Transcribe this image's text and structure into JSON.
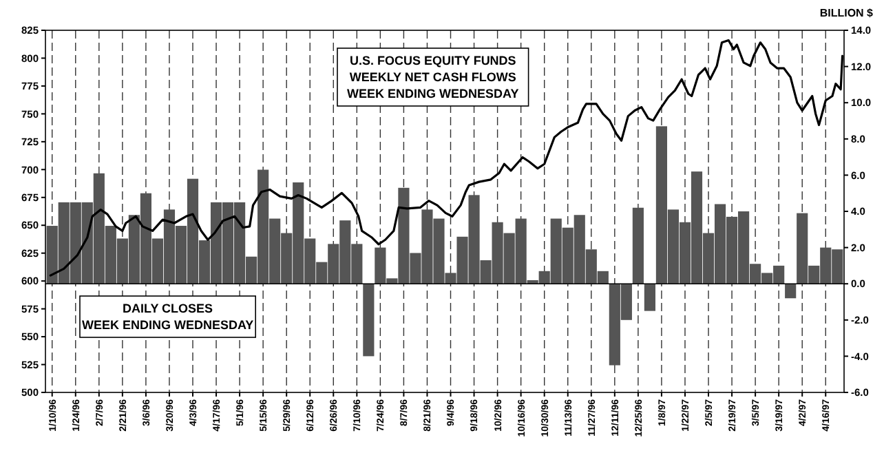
{
  "chart_data": {
    "type": "bar",
    "y2label": "BILLION $",
    "xlim": [
      "1996-01-06",
      "1997-04-27"
    ],
    "xticks": [
      {
        "value": "1996-01-10",
        "label": "1/10/96"
      },
      {
        "value": "1996-01-24",
        "label": "1/24/96"
      },
      {
        "value": "1996-02-07",
        "label": "2/7/96"
      },
      {
        "value": "1996-02-21",
        "label": "2/21/96"
      },
      {
        "value": "1996-03-06",
        "label": "3/6/96"
      },
      {
        "value": "1996-03-20",
        "label": "3/20/96"
      },
      {
        "value": "1996-04-03",
        "label": "4/3/96"
      },
      {
        "value": "1996-04-17",
        "label": "4/17/96"
      },
      {
        "value": "1996-05-01",
        "label": "5/1/96"
      },
      {
        "value": "1996-05-15",
        "label": "5/15/96"
      },
      {
        "value": "1996-05-29",
        "label": "5/29/96"
      },
      {
        "value": "1996-06-12",
        "label": "6/12/96"
      },
      {
        "value": "1996-06-26",
        "label": "6/26/96"
      },
      {
        "value": "1996-07-10",
        "label": "7/10/96"
      },
      {
        "value": "1996-07-24",
        "label": "7/24/96"
      },
      {
        "value": "1996-08-07",
        "label": "8/7/96"
      },
      {
        "value": "1996-08-21",
        "label": "8/21/96"
      },
      {
        "value": "1996-09-04",
        "label": "9/4/96"
      },
      {
        "value": "1996-09-18",
        "label": "9/18/96"
      },
      {
        "value": "1996-10-02",
        "label": "10/2/96"
      },
      {
        "value": "1996-10-16",
        "label": "10/16/96"
      },
      {
        "value": "1996-10-30",
        "label": "10/30/96"
      },
      {
        "value": "1996-11-13",
        "label": "11/13/96"
      },
      {
        "value": "1996-11-27",
        "label": "11/27/96"
      },
      {
        "value": "1996-12-11",
        "label": "12/11/96"
      },
      {
        "value": "1996-12-25",
        "label": "12/25/96"
      },
      {
        "value": "1997-01-08",
        "label": "1/8/97"
      },
      {
        "value": "1997-01-22",
        "label": "1/22/97"
      },
      {
        "value": "1997-02-05",
        "label": "2/5/97"
      },
      {
        "value": "1997-02-19",
        "label": "2/19/97"
      },
      {
        "value": "1997-03-05",
        "label": "3/5/97"
      },
      {
        "value": "1997-03-19",
        "label": "3/19/97"
      },
      {
        "value": "1997-04-02",
        "label": "4/2/97"
      },
      {
        "value": "1997-04-16",
        "label": "4/16/97"
      }
    ],
    "ylim": [
      500,
      825
    ],
    "yticks": [
      500,
      525,
      550,
      575,
      600,
      625,
      650,
      675,
      700,
      725,
      750,
      775,
      800,
      825
    ],
    "y2lim": [
      -6,
      14
    ],
    "y2ticks": [
      {
        "value": -6,
        "label": "-6.0"
      },
      {
        "value": -4,
        "label": "-4.0"
      },
      {
        "value": -2,
        "label": "-2.0"
      },
      {
        "value": 0,
        "label": "0.0"
      },
      {
        "value": 2,
        "label": "2.0"
      },
      {
        "value": 4,
        "label": "4.0"
      },
      {
        "value": 6,
        "label": "6.0"
      },
      {
        "value": 8,
        "label": "8.0"
      },
      {
        "value": 10,
        "label": "10.0"
      },
      {
        "value": 12,
        "label": "12.0"
      },
      {
        "value": 14,
        "label": "14.0"
      }
    ],
    "grid": "x",
    "annotations": [
      "U.S. FOCUS EQUITY FUNDS\nWEEKLY NET CASH FLOWS\nWEEK ENDING WEDNESDAY",
      "DAILY CLOSES\nWEEK ENDING WEDNESDAY"
    ],
    "series": [
      {
        "axis": "y2",
        "color": "#555555",
        "x": [
          "1996-01-10",
          "1996-01-17",
          "1996-01-24",
          "1996-01-31",
          "1996-02-07",
          "1996-02-14",
          "1996-02-21",
          "1996-02-28",
          "1996-03-06",
          "1996-03-13",
          "1996-03-20",
          "1996-03-27",
          "1996-04-03",
          "1996-04-10",
          "1996-04-17",
          "1996-04-24",
          "1996-05-01",
          "1996-05-08",
          "1996-05-15",
          "1996-05-22",
          "1996-05-29",
          "1996-06-05",
          "1996-06-12",
          "1996-06-19",
          "1996-06-26",
          "1996-07-03",
          "1996-07-10",
          "1996-07-17",
          "1996-07-24",
          "1996-07-31",
          "1996-08-07",
          "1996-08-14",
          "1996-08-21",
          "1996-08-28",
          "1996-09-04",
          "1996-09-11",
          "1996-09-18",
          "1996-09-25",
          "1996-10-02",
          "1996-10-09",
          "1996-10-16",
          "1996-10-23",
          "1996-10-30",
          "1996-11-06",
          "1996-11-13",
          "1996-11-20",
          "1996-11-27",
          "1996-12-04",
          "1996-12-11",
          "1996-12-18",
          "1996-12-25",
          "1997-01-01",
          "1997-01-08",
          "1997-01-15",
          "1997-01-22",
          "1997-01-29",
          "1997-02-05",
          "1997-02-12",
          "1997-02-19",
          "1997-02-26",
          "1997-03-05",
          "1997-03-12",
          "1997-03-19",
          "1997-03-26",
          "1997-04-02",
          "1997-04-09",
          "1997-04-16",
          "1997-04-23"
        ],
        "values": [
          3.2,
          4.5,
          4.5,
          4.5,
          6.1,
          3.2,
          2.5,
          3.8,
          5.0,
          2.5,
          4.1,
          3.2,
          5.8,
          2.4,
          4.5,
          4.5,
          4.5,
          1.5,
          6.3,
          3.6,
          2.8,
          5.6,
          2.5,
          1.2,
          2.2,
          3.5,
          2.2,
          -4.0,
          2.0,
          0.3,
          5.3,
          1.7,
          4.1,
          3.6,
          0.6,
          2.6,
          4.9,
          1.3,
          3.4,
          2.8,
          3.6,
          0.2,
          0.7,
          3.6,
          3.1,
          3.8,
          1.9,
          0.7,
          -4.5,
          -2.0,
          4.2,
          -1.5,
          8.7,
          4.1,
          3.4,
          6.2,
          2.8,
          4.4,
          3.7,
          4.0,
          1.1,
          0.6,
          1.0,
          -0.8,
          3.9,
          1.0,
          2.0,
          1.9
        ]
      },
      {
        "type": "line",
        "color": "#000000",
        "x": [
          "1996-01-09",
          "1996-01-17",
          "1996-01-25",
          "1996-01-31",
          "1996-02-03",
          "1996-02-08",
          "1996-02-12",
          "1996-02-17",
          "1996-02-21",
          "1996-02-23",
          "1996-02-29",
          "1996-03-04",
          "1996-03-10",
          "1996-03-16",
          "1996-03-23",
          "1996-03-30",
          "1996-04-03",
          "1996-04-08",
          "1996-04-12",
          "1996-04-16",
          "1996-04-21",
          "1996-04-28",
          "1996-05-03",
          "1996-05-07",
          "1996-05-09",
          "1996-05-14",
          "1996-05-19",
          "1996-05-25",
          "1996-06-01",
          "1996-06-05",
          "1996-06-10",
          "1996-06-19",
          "1996-06-25",
          "1996-07-01",
          "1996-07-07",
          "1996-07-11",
          "1996-07-13",
          "1996-07-19",
          "1996-07-23",
          "1996-07-27",
          "1996-08-01",
          "1996-08-04",
          "1996-08-09",
          "1996-08-17",
          "1996-08-22",
          "1996-08-27",
          "1996-09-01",
          "1996-09-05",
          "1996-09-10",
          "1996-09-13",
          "1996-09-15",
          "1996-09-21",
          "1996-09-28",
          "1996-10-03",
          "1996-10-06",
          "1996-10-10",
          "1996-10-17",
          "1996-10-21",
          "1996-10-26",
          "1996-10-30",
          "1996-11-05",
          "1996-11-09",
          "1996-11-13",
          "1996-11-19",
          "1996-11-22",
          "1996-11-24",
          "1996-11-30",
          "1996-12-04",
          "1996-12-08",
          "1996-12-12",
          "1996-12-15",
          "1996-12-19",
          "1996-12-23",
          "1996-12-27",
          "1996-12-31",
          "1997-01-03",
          "1997-01-07",
          "1997-01-12",
          "1997-01-16",
          "1997-01-20",
          "1997-01-24",
          "1997-01-26",
          "1997-01-30",
          "1997-02-03",
          "1997-02-06",
          "1997-02-10",
          "1997-02-13",
          "1997-02-17",
          "1997-02-20",
          "1997-02-22",
          "1997-02-26",
          "1997-03-02",
          "1997-03-04",
          "1997-03-08",
          "1997-03-11",
          "1997-03-14",
          "1997-03-18",
          "1997-03-22",
          "1997-03-26",
          "1997-03-30",
          "1997-04-02",
          "1997-04-08",
          "1997-04-10",
          "1997-04-12",
          "1997-04-16",
          "1997-04-20",
          "1997-04-22",
          "1997-04-25",
          "1997-04-26"
        ],
        "values": [
          605,
          611,
          623,
          639,
          658,
          664,
          660,
          649,
          645,
          652,
          658,
          649,
          645,
          655,
          652,
          658,
          660,
          645,
          637,
          643,
          654,
          658,
          648,
          649,
          668,
          680,
          682,
          676,
          674,
          677,
          674,
          666,
          672,
          679,
          670,
          658,
          645,
          639,
          633,
          637,
          645,
          666,
          665,
          666,
          672,
          668,
          661,
          658,
          668,
          680,
          686,
          689,
          691,
          697,
          705,
          699,
          711,
          707,
          701,
          705,
          729,
          734,
          738,
          742,
          754,
          759,
          759,
          750,
          744,
          732,
          726,
          748,
          753,
          756,
          746,
          744,
          754,
          765,
          771,
          781,
          768,
          766,
          785,
          791,
          781,
          793,
          814,
          816,
          808,
          812,
          796,
          793,
          802,
          814,
          808,
          796,
          791,
          791,
          783,
          760,
          753,
          766,
          750,
          740,
          762,
          766,
          777,
          772,
          802
        ]
      }
    ]
  }
}
